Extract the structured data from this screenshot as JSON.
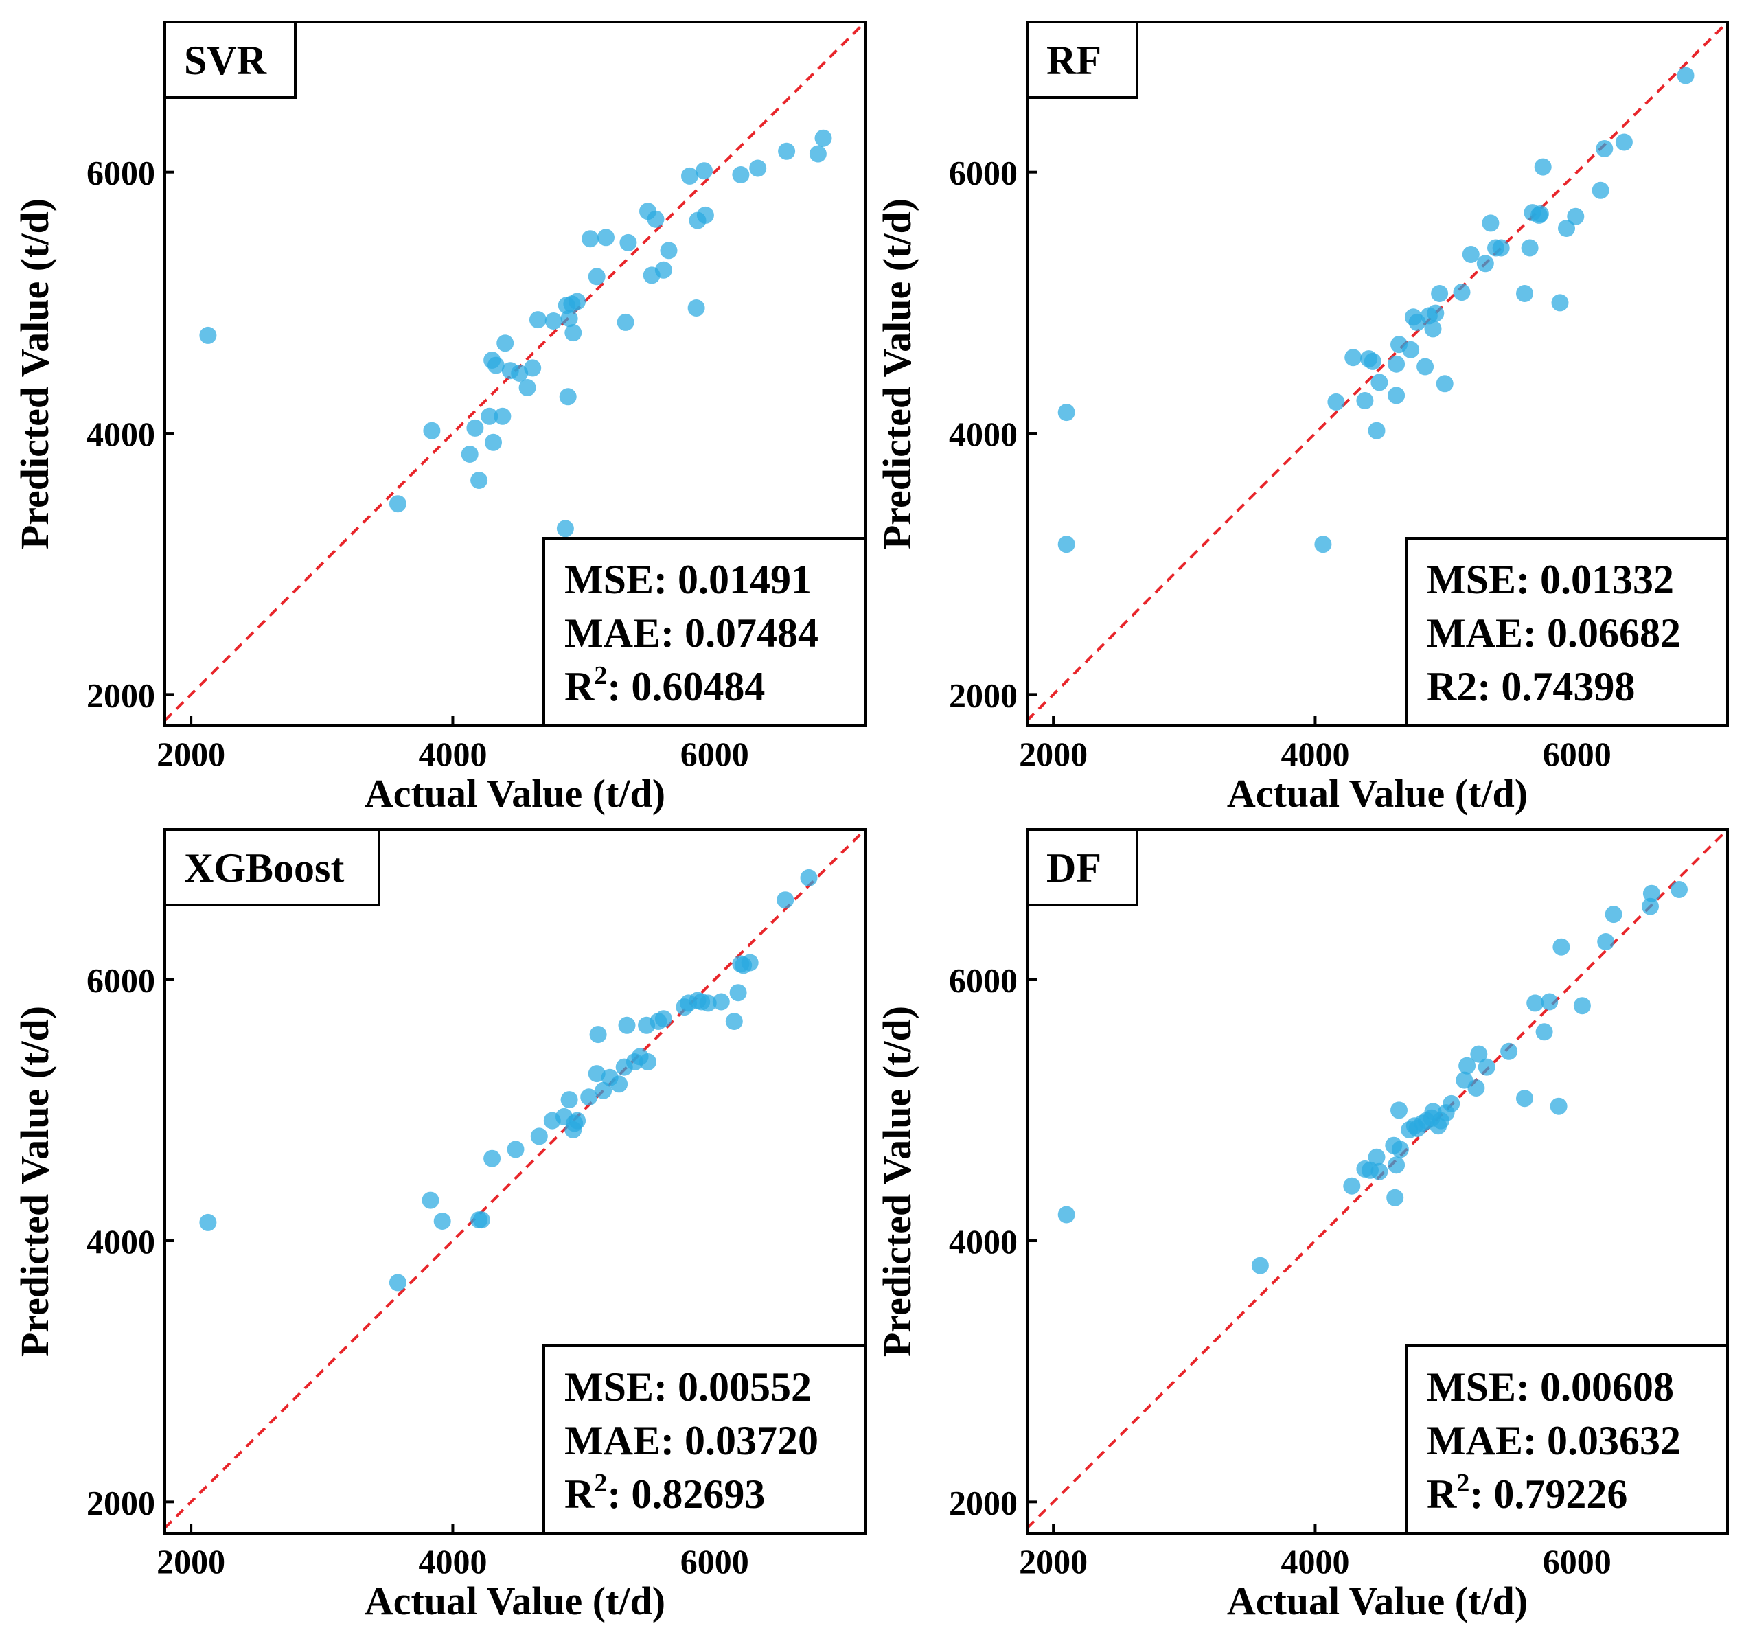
{
  "figure": {
    "colors": {
      "point": "#29a9e0",
      "identity_line": "#e8262b",
      "frame": "#000000"
    },
    "panel_order": [
      "SVR",
      "RF",
      "XGBoost",
      "DF"
    ]
  },
  "chart_data": [
    {
      "type": "scatter",
      "title": "SVR",
      "xlabel": "Actual Value (t/d)",
      "ylabel": "Predicted Value (t/d)",
      "xlim": [
        1800,
        7150
      ],
      "ylim": [
        1760,
        7150
      ],
      "xticks": [
        2000,
        4000,
        6000
      ],
      "yticks": [
        2000,
        4000,
        6000
      ],
      "xtick_labels": [
        "2000",
        "4000",
        "6000"
      ],
      "ytick_labels": [
        "2000",
        "4000",
        "6000"
      ],
      "identity_line": true,
      "grid": false,
      "metrics": [
        {
          "name": "MSE",
          "sup": "",
          "sep": ": ",
          "value": "0.01491"
        },
        {
          "name": "MAE",
          "sup": "",
          "sep": ": ",
          "value": "0.07484"
        },
        {
          "name": "R",
          "sup": "2",
          "sep": ": ",
          "value": "0.60484"
        }
      ],
      "x": [
        2130,
        3580,
        3840,
        4130,
        4170,
        4200,
        4280,
        4300,
        4310,
        4330,
        4380,
        4400,
        4440,
        4510,
        4570,
        4610,
        4650,
        4770,
        4860,
        4870,
        4880,
        4890,
        4910,
        4920,
        4950,
        5050,
        5100,
        5170,
        5320,
        5340,
        5490,
        5520,
        5550,
        5610,
        5650,
        5810,
        5860,
        5870,
        5920,
        5930,
        6200,
        6330,
        6550,
        6790,
        6830
      ],
      "y": [
        4750,
        3460,
        4020,
        3840,
        4040,
        3640,
        4130,
        4560,
        3930,
        4520,
        4130,
        4690,
        4480,
        4460,
        4350,
        4500,
        4870,
        4860,
        3270,
        4980,
        4280,
        4880,
        4990,
        4770,
        5010,
        5490,
        5200,
        5500,
        4850,
        5460,
        5700,
        5210,
        5640,
        5250,
        5400,
        5970,
        4960,
        5630,
        6010,
        5670,
        5980,
        6030,
        6160,
        6140,
        6260
      ]
    },
    {
      "type": "scatter",
      "title": "RF",
      "xlabel": "Actual Value (t/d)",
      "ylabel": "Predicted Value (t/d)",
      "xlim": [
        1800,
        7150
      ],
      "ylim": [
        1760,
        7150
      ],
      "xticks": [
        2000,
        4000,
        6000
      ],
      "yticks": [
        2000,
        4000,
        6000
      ],
      "xtick_labels": [
        "2000",
        "4000",
        "6000"
      ],
      "ytick_labels": [
        "2000",
        "4000",
        "6000"
      ],
      "identity_line": true,
      "grid": false,
      "metrics": [
        {
          "name": "MSE",
          "sup": "",
          "sep": ": ",
          "value": "0.01332"
        },
        {
          "name": "MAE",
          "sup": "",
          "sep": ": ",
          "value": "0.06682"
        },
        {
          "name": "R2",
          "sup": "",
          "sep": ": ",
          "value": "0.74398"
        }
      ],
      "x": [
        2100,
        2100,
        4060,
        4160,
        4290,
        4380,
        4410,
        4440,
        4470,
        4490,
        4620,
        4620,
        4640,
        4730,
        4750,
        4780,
        4840,
        4870,
        4900,
        4920,
        4950,
        4990,
        5120,
        5190,
        5300,
        5340,
        5380,
        5420,
        5600,
        5640,
        5660,
        5710,
        5740,
        5720,
        5870,
        5920,
        5990,
        6180,
        6210,
        6360,
        6830
      ],
      "y": [
        4160,
        3150,
        3150,
        4240,
        4580,
        4250,
        4570,
        4550,
        4020,
        4390,
        4290,
        4530,
        4680,
        4640,
        4890,
        4850,
        4510,
        4900,
        4800,
        4920,
        5070,
        4380,
        5080,
        5370,
        5300,
        5610,
        5420,
        5420,
        5070,
        5420,
        5690,
        5670,
        6040,
        5680,
        5000,
        5570,
        5660,
        5860,
        6180,
        6230,
        6740
      ]
    },
    {
      "type": "scatter",
      "title": "XGBoost",
      "xlabel": "Actual Value (t/d)",
      "ylabel": "Predicted Value (t/d)",
      "xlim": [
        1800,
        7150
      ],
      "ylim": [
        1760,
        7150
      ],
      "xticks": [
        2000,
        4000,
        6000
      ],
      "yticks": [
        2000,
        4000,
        6000
      ],
      "xtick_labels": [
        "2000",
        "4000",
        "6000"
      ],
      "ytick_labels": [
        "2000",
        "4000",
        "6000"
      ],
      "identity_line": true,
      "grid": false,
      "metrics": [
        {
          "name": "MSE",
          "sup": "",
          "sep": ": ",
          "value": "0.00552"
        },
        {
          "name": "MAE",
          "sup": "",
          "sep": ": ",
          "value": "0.03720"
        },
        {
          "name": "R",
          "sup": "2",
          "sep": ": ",
          "value": "0.82693"
        }
      ],
      "x": [
        2130,
        3580,
        3830,
        3920,
        4200,
        4220,
        4300,
        4480,
        4660,
        4760,
        4850,
        4890,
        4920,
        4930,
        4950,
        5040,
        5100,
        5110,
        5150,
        5200,
        5270,
        5310,
        5330,
        5390,
        5430,
        5480,
        5490,
        5570,
        5610,
        5770,
        5800,
        5870,
        5900,
        5950,
        6050,
        6150,
        6180,
        6200,
        6220,
        6270,
        6540,
        6720
      ],
      "y": [
        4140,
        3680,
        4310,
        4150,
        4160,
        4160,
        4630,
        4700,
        4800,
        4920,
        4950,
        5080,
        4850,
        4900,
        4920,
        5100,
        5280,
        5580,
        5150,
        5250,
        5200,
        5330,
        5650,
        5370,
        5410,
        5650,
        5370,
        5680,
        5700,
        5790,
        5820,
        5840,
        5830,
        5820,
        5830,
        5680,
        5900,
        6120,
        6110,
        6130,
        6610,
        6780
      ]
    },
    {
      "type": "scatter",
      "title": "DF",
      "xlabel": "Actual Value (t/d)",
      "ylabel": "Predicted Value (t/d)",
      "xlim": [
        1800,
        7150
      ],
      "ylim": [
        1760,
        7150
      ],
      "xticks": [
        2000,
        4000,
        6000
      ],
      "yticks": [
        2000,
        4000,
        6000
      ],
      "xtick_labels": [
        "2000",
        "4000",
        "6000"
      ],
      "ytick_labels": [
        "2000",
        "4000",
        "6000"
      ],
      "identity_line": true,
      "grid": false,
      "metrics": [
        {
          "name": "MSE",
          "sup": "",
          "sep": ": ",
          "value": "0.00608"
        },
        {
          "name": "MAE",
          "sup": "",
          "sep": ": ",
          "value": "0.03632"
        },
        {
          "name": "R",
          "sup": "2",
          "sep": ": ",
          "value": "0.79226"
        }
      ],
      "x": [
        2100,
        3580,
        4280,
        4380,
        4420,
        4470,
        4490,
        4600,
        4610,
        4620,
        4640,
        4650,
        4720,
        4760,
        4780,
        4820,
        4850,
        4890,
        4900,
        4940,
        4960,
        5000,
        5040,
        5140,
        5160,
        5230,
        5250,
        5310,
        5480,
        5600,
        5680,
        5750,
        5790,
        5860,
        5880,
        6040,
        6220,
        6280,
        6560,
        6570,
        6780
      ],
      "y": [
        4200,
        3810,
        4420,
        4550,
        4540,
        4640,
        4530,
        4730,
        4330,
        4580,
        5000,
        4700,
        4850,
        4880,
        4860,
        4900,
        4920,
        4940,
        4990,
        4880,
        4920,
        4980,
        5050,
        5230,
        5340,
        5170,
        5430,
        5330,
        5450,
        5090,
        5820,
        5600,
        5830,
        5030,
        6250,
        5800,
        6290,
        6500,
        6560,
        6660,
        6690
      ]
    }
  ]
}
